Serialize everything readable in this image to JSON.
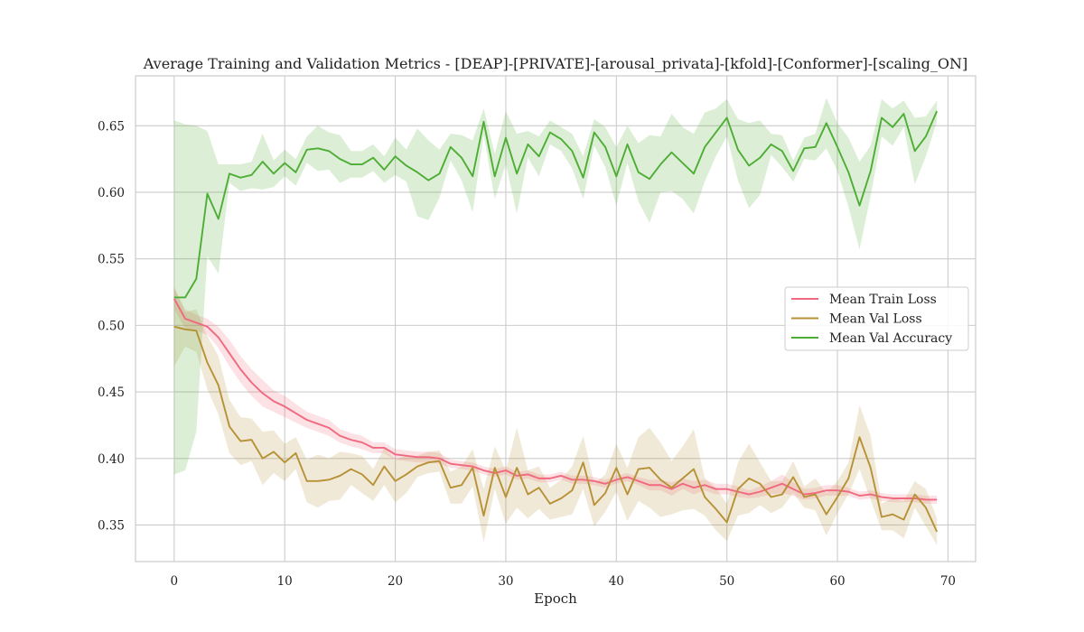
{
  "chart_data": {
    "type": "line",
    "title": "Average Training and Validation Metrics - [DEAP]-[PRIVATE]-[arousal_privata]-[kfold]-[Conformer]-[scaling_ON]",
    "xlabel": "Epoch",
    "ylabel": "",
    "xlim": [
      -3.5,
      72.5
    ],
    "ylim": [
      0.3225,
      0.6875
    ],
    "xticks": [
      0,
      10,
      20,
      30,
      40,
      50,
      60,
      70
    ],
    "yticks": [
      0.35,
      0.4,
      0.45,
      0.5,
      0.55,
      0.6,
      0.65
    ],
    "grid": true,
    "legend_position": "center-right",
    "x": [
      0,
      1,
      2,
      3,
      4,
      5,
      6,
      7,
      8,
      9,
      10,
      11,
      12,
      13,
      14,
      15,
      16,
      17,
      18,
      19,
      20,
      21,
      22,
      23,
      24,
      25,
      26,
      27,
      28,
      29,
      30,
      31,
      32,
      33,
      34,
      35,
      36,
      37,
      38,
      39,
      40,
      41,
      42,
      43,
      44,
      45,
      46,
      47,
      48,
      49,
      50,
      51,
      52,
      53,
      54,
      55,
      56,
      57,
      58,
      59,
      60,
      61,
      62,
      63,
      64,
      65,
      66,
      67,
      68,
      69
    ],
    "series": [
      {
        "name": "Mean Train Loss",
        "color": "#f0697e",
        "band_opacity": 0.2,
        "values": [
          0.52,
          0.505,
          0.502,
          0.499,
          0.491,
          0.479,
          0.467,
          0.457,
          0.449,
          0.443,
          0.439,
          0.434,
          0.429,
          0.426,
          0.423,
          0.417,
          0.414,
          0.412,
          0.408,
          0.408,
          0.403,
          0.402,
          0.401,
          0.401,
          0.4,
          0.396,
          0.395,
          0.394,
          0.391,
          0.389,
          0.391,
          0.387,
          0.388,
          0.385,
          0.385,
          0.387,
          0.384,
          0.384,
          0.383,
          0.381,
          0.384,
          0.386,
          0.383,
          0.38,
          0.38,
          0.377,
          0.381,
          0.378,
          0.38,
          0.377,
          0.377,
          0.375,
          0.373,
          0.375,
          0.378,
          0.381,
          0.377,
          0.373,
          0.374,
          0.376,
          0.376,
          0.375,
          0.372,
          0.373,
          0.371,
          0.37,
          0.37,
          0.37,
          0.369,
          0.369
        ],
        "band": [
          0.008,
          0.007,
          0.006,
          0.006,
          0.008,
          0.01,
          0.01,
          0.01,
          0.01,
          0.008,
          0.008,
          0.007,
          0.006,
          0.006,
          0.006,
          0.005,
          0.005,
          0.005,
          0.004,
          0.004,
          0.004,
          0.004,
          0.004,
          0.004,
          0.004,
          0.003,
          0.003,
          0.003,
          0.003,
          0.003,
          0.003,
          0.003,
          0.003,
          0.003,
          0.003,
          0.003,
          0.003,
          0.003,
          0.003,
          0.003,
          0.003,
          0.003,
          0.003,
          0.004,
          0.004,
          0.005,
          0.004,
          0.005,
          0.004,
          0.004,
          0.004,
          0.004,
          0.003,
          0.004,
          0.005,
          0.007,
          0.005,
          0.004,
          0.004,
          0.004,
          0.004,
          0.003,
          0.003,
          0.003,
          0.003,
          0.003,
          0.003,
          0.003,
          0.003,
          0.003
        ]
      },
      {
        "name": "Mean Val Loss",
        "color": "#b79136",
        "band_opacity": 0.2,
        "values": [
          0.499,
          0.497,
          0.496,
          0.472,
          0.455,
          0.424,
          0.413,
          0.414,
          0.4,
          0.405,
          0.397,
          0.404,
          0.383,
          0.383,
          0.384,
          0.387,
          0.392,
          0.388,
          0.38,
          0.394,
          0.383,
          0.388,
          0.394,
          0.397,
          0.398,
          0.378,
          0.38,
          0.393,
          0.357,
          0.393,
          0.371,
          0.393,
          0.373,
          0.378,
          0.366,
          0.37,
          0.376,
          0.397,
          0.365,
          0.374,
          0.393,
          0.373,
          0.392,
          0.393,
          0.384,
          0.378,
          0.385,
          0.392,
          0.371,
          0.362,
          0.352,
          0.377,
          0.385,
          0.381,
          0.371,
          0.373,
          0.386,
          0.371,
          0.373,
          0.358,
          0.371,
          0.385,
          0.416,
          0.393,
          0.356,
          0.358,
          0.354,
          0.373,
          0.363,
          0.345
        ],
        "band": [
          0.03,
          0.013,
          0.016,
          0.02,
          0.022,
          0.02,
          0.018,
          0.016,
          0.02,
          0.016,
          0.014,
          0.012,
          0.016,
          0.02,
          0.016,
          0.018,
          0.012,
          0.014,
          0.012,
          0.014,
          0.016,
          0.014,
          0.008,
          0.008,
          0.008,
          0.012,
          0.014,
          0.014,
          0.02,
          0.016,
          0.02,
          0.03,
          0.018,
          0.016,
          0.012,
          0.014,
          0.018,
          0.02,
          0.016,
          0.014,
          0.018,
          0.02,
          0.024,
          0.03,
          0.028,
          0.02,
          0.024,
          0.03,
          0.014,
          0.016,
          0.014,
          0.02,
          0.026,
          0.016,
          0.012,
          0.01,
          0.012,
          0.008,
          0.012,
          0.016,
          0.012,
          0.012,
          0.024,
          0.024,
          0.01,
          0.012,
          0.014,
          0.01,
          0.014,
          0.01
        ]
      },
      {
        "name": "Mean Val Accuracy",
        "color": "#4ead34",
        "band_opacity": 0.2,
        "values": [
          0.521,
          0.521,
          0.535,
          0.599,
          0.58,
          0.614,
          0.611,
          0.613,
          0.623,
          0.614,
          0.622,
          0.615,
          0.632,
          0.633,
          0.631,
          0.625,
          0.621,
          0.621,
          0.626,
          0.617,
          0.627,
          0.62,
          0.615,
          0.609,
          0.614,
          0.634,
          0.626,
          0.612,
          0.653,
          0.612,
          0.641,
          0.614,
          0.636,
          0.627,
          0.645,
          0.64,
          0.631,
          0.611,
          0.645,
          0.634,
          0.612,
          0.636,
          0.615,
          0.61,
          0.621,
          0.63,
          0.622,
          0.614,
          0.634,
          0.645,
          0.656,
          0.632,
          0.62,
          0.626,
          0.636,
          0.631,
          0.616,
          0.633,
          0.634,
          0.652,
          0.634,
          0.615,
          0.59,
          0.616,
          0.656,
          0.649,
          0.659,
          0.631,
          0.642,
          0.661
        ],
        "band": [
          0.133,
          0.13,
          0.115,
          0.047,
          0.041,
          0.007,
          0.01,
          0.01,
          0.021,
          0.01,
          0.01,
          0.01,
          0.01,
          0.017,
          0.014,
          0.018,
          0.01,
          0.01,
          0.01,
          0.01,
          0.014,
          0.012,
          0.033,
          0.03,
          0.018,
          0.01,
          0.017,
          0.027,
          0.01,
          0.017,
          0.02,
          0.03,
          0.01,
          0.015,
          0.009,
          0.009,
          0.013,
          0.016,
          0.01,
          0.015,
          0.022,
          0.014,
          0.022,
          0.033,
          0.021,
          0.029,
          0.027,
          0.03,
          0.026,
          0.018,
          0.014,
          0.023,
          0.032,
          0.028,
          0.008,
          0.012,
          0.008,
          0.008,
          0.01,
          0.019,
          0.018,
          0.026,
          0.033,
          0.019,
          0.014,
          0.014,
          0.01,
          0.025,
          0.015,
          0.008
        ]
      }
    ]
  }
}
